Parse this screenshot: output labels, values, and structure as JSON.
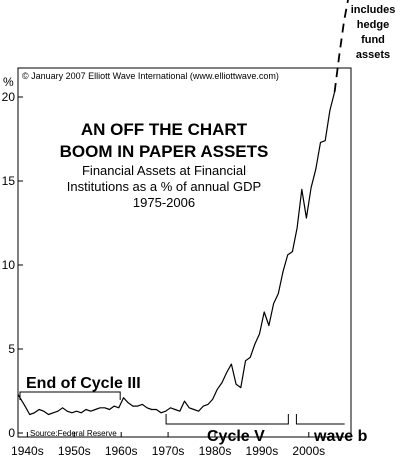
{
  "chart_data": {
    "type": "line",
    "title_lines": [
      "AN OFF THE CHART",
      "BOOM IN PAPER ASSETS"
    ],
    "subtitle_lines": [
      "Financial Assets at Financial",
      "Institutions as a % of annual GDP",
      "1975-2006"
    ],
    "copyright": "© January 2007 Elliott Wave International (www.elliottwave.com)",
    "source": "Source:Federal Reserve",
    "y_unit": "%",
    "ylim": [
      0,
      22
    ],
    "xlim": [
      1938,
      2009
    ],
    "y_ticks": [
      0,
      5,
      10,
      15,
      20
    ],
    "y_tick_labels": [
      "0",
      "5",
      "10",
      "15",
      "20"
    ],
    "x_ticks": [
      1940,
      1950,
      1960,
      1970,
      1980,
      1990,
      2000
    ],
    "x_tick_labels": [
      "1940s",
      "1950s",
      "1960s",
      "1970s",
      "1980s",
      "1990s",
      "2000s"
    ],
    "grid": false,
    "series": [
      {
        "style": "solid",
        "x": [
          1938,
          1939.5,
          1940.5,
          1941.5,
          1942.5,
          1943.5,
          1944.5,
          1945.5,
          1946.5,
          1947.5,
          1948.5,
          1949.5,
          1950.5,
          1951.5,
          1952.5,
          1953.5,
          1954.5,
          1955.5,
          1956.5,
          1957.5,
          1958.5,
          1959.5,
          1960.5,
          1961.5,
          1962.5,
          1963.5,
          1964.5,
          1965.5,
          1966.5,
          1967.5,
          1968.5,
          1969.5,
          1970.5,
          1971.5,
          1972.5,
          1973.5,
          1974.5,
          1975.5,
          1976.5,
          1977.5,
          1978.5,
          1979.5,
          1980.5,
          1981.5,
          1982.5,
          1983.5,
          1984.5,
          1985.5,
          1986.5,
          1987.5,
          1988.5,
          1989.5,
          1990.5,
          1991.5,
          1992.5,
          1993.5,
          1994.5,
          1995.5,
          1996.5,
          1997.5,
          1998.5,
          1999.5,
          2000.5,
          2001.5,
          2002.5,
          2003.5,
          2004.5,
          2005.5
        ],
        "y": [
          2.3,
          1.6,
          1.1,
          1.2,
          1.4,
          1.3,
          1.1,
          1.2,
          1.3,
          1.5,
          1.3,
          1.2,
          1.3,
          1.2,
          1.4,
          1.3,
          1.4,
          1.5,
          1.5,
          1.4,
          1.6,
          1.5,
          2.1,
          1.8,
          1.6,
          1.6,
          1.7,
          1.5,
          1.4,
          1.4,
          1.2,
          1.3,
          1.5,
          1.4,
          1.3,
          1.9,
          1.5,
          1.4,
          1.3,
          1.6,
          1.7,
          2.0,
          2.6,
          3.0,
          3.6,
          4.1,
          2.9,
          2.7,
          4.3,
          4.5,
          5.3,
          5.9,
          7.2,
          6.4,
          7.7,
          8.3,
          9.6,
          10.6,
          10.8,
          12.2,
          14.5,
          12.8,
          14.6,
          15.7,
          17.3,
          17.4,
          19.2,
          20.3
        ]
      },
      {
        "style": "dashed",
        "x": [
          2005.5,
          2006.5,
          2007.5,
          2008.5
        ],
        "y": [
          20.3,
          22.5,
          24.5,
          26.0
        ]
      }
    ],
    "annotations": [
      {
        "text": "End of Cycle III",
        "x_start": 1938,
        "x_end": 1960
      },
      {
        "text": "Cycle V",
        "x_start": 1970,
        "x_end": 1995
      },
      {
        "text": "wave b",
        "x_start": 1998,
        "x_end": 2007
      }
    ],
    "hedge_note_lines": [
      "includes",
      "hedge",
      "fund",
      "assets"
    ]
  }
}
